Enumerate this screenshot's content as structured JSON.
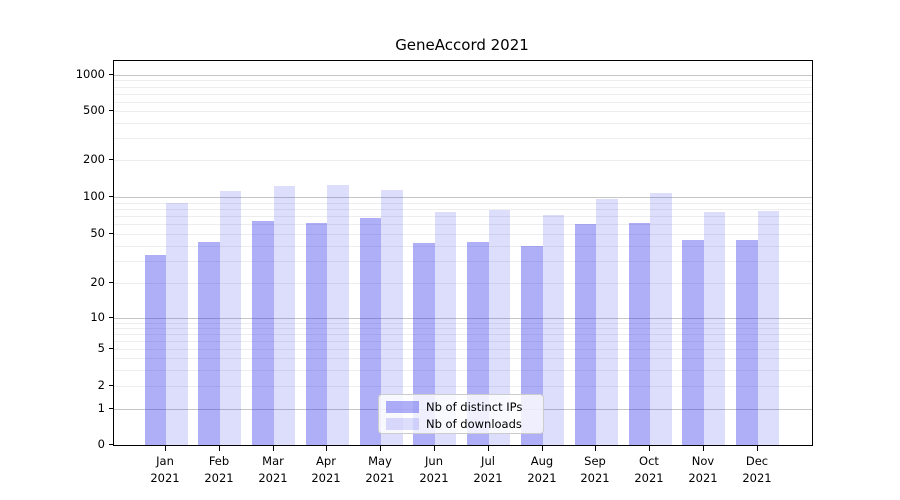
{
  "title": "GeneAccord 2021",
  "chart_data": {
    "type": "bar",
    "title": "GeneAccord 2021",
    "categories": [
      "Jan 2021",
      "Feb 2021",
      "Mar 2021",
      "Apr 2021",
      "May 2021",
      "Jun 2021",
      "Jul 2021",
      "Aug 2021",
      "Sep 2021",
      "Oct 2021",
      "Nov 2021",
      "Dec 2021"
    ],
    "series": [
      {
        "name": "Nb of distinct IPs",
        "color": "#a9a9f4",
        "color_rgba": "rgba(45,45,235,0.38)",
        "values": [
          34,
          43,
          64,
          61,
          67,
          42,
          43,
          40,
          60,
          61,
          45,
          45
        ]
      },
      {
        "name": "Nb of downloads",
        "color": "#dcdcfa",
        "color_rgba": "rgba(45,45,235,0.16)",
        "values": [
          90,
          112,
          123,
          125,
          114,
          76,
          79,
          72,
          96,
          108,
          75,
          77
        ]
      }
    ],
    "xlabel": "",
    "ylabel": "",
    "yscale": "symlog",
    "y_ticks": [
      0,
      1,
      2,
      5,
      10,
      20,
      50,
      100,
      200,
      500,
      1000
    ],
    "ylim": [
      0,
      1300
    ],
    "grid": "on",
    "gridline_major_color": "#c6c6c6",
    "gridline_minor_color": "#ededed",
    "legend_position": "lower-center-inside",
    "background_color": "#ffffff"
  }
}
